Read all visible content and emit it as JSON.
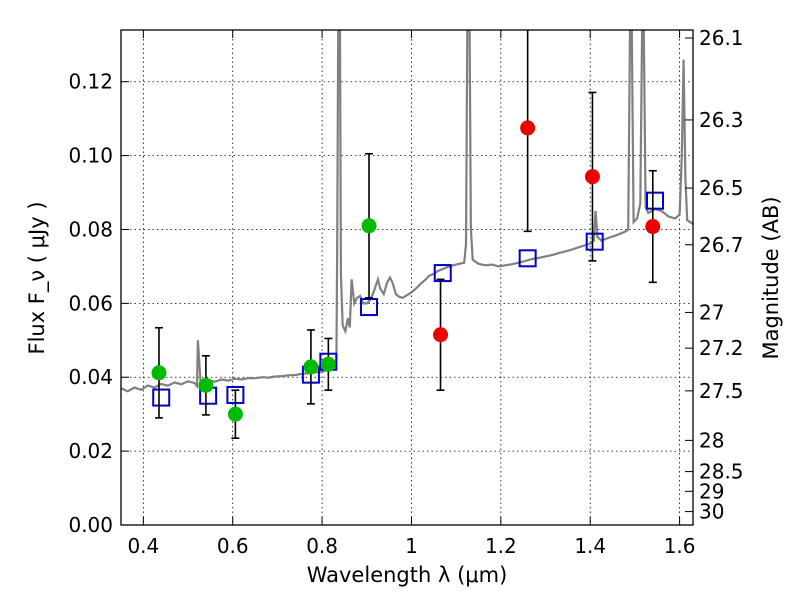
{
  "chart_data": {
    "type": "scatter",
    "xlabel": "Wavelength  λ (μm)",
    "ylabel": "Flux  F_ν  ( μJy )",
    "ylabel_right": "Magnitude (AB)",
    "xlim": [
      0.35,
      1.63
    ],
    "ylim": [
      0.0,
      0.134
    ],
    "grid": true,
    "x_ticks": [
      0.4,
      0.6,
      0.8,
      1.0,
      1.2,
      1.4,
      1.6
    ],
    "x_tick_labels": [
      "0.4",
      "0.6",
      "0.8",
      "1",
      "1.2",
      "1.4",
      "1.6"
    ],
    "y_ticks": [
      0.0,
      0.02,
      0.04,
      0.06,
      0.08,
      0.1,
      0.12
    ],
    "y_tick_labels": [
      "0.00",
      "0.02",
      "0.04",
      "0.06",
      "0.08",
      "0.10",
      "0.12"
    ],
    "right_ticks": [
      {
        "label": "26.1",
        "mag": 26.1
      },
      {
        "label": "26.3",
        "mag": 26.3
      },
      {
        "label": "26.5",
        "mag": 26.5
      },
      {
        "label": "26.7",
        "mag": 26.7
      },
      {
        "label": "27",
        "mag": 27.0
      },
      {
        "label": "27.2",
        "mag": 27.2
      },
      {
        "label": "27.5",
        "mag": 27.5
      },
      {
        "label": "28",
        "mag": 28.0
      },
      {
        "label": "28.5",
        "mag": 28.5
      },
      {
        "label": "29",
        "mag": 29.0
      },
      {
        "label": "30",
        "mag": 30.0
      }
    ],
    "series": [
      {
        "marker": "circle",
        "color": "#00bb00",
        "points": [
          {
            "x": 0.435,
            "y": 0.0412,
            "err": 0.0122
          },
          {
            "x": 0.54,
            "y": 0.0378,
            "err": 0.008
          },
          {
            "x": 0.606,
            "y": 0.03,
            "err": 0.0065
          },
          {
            "x": 0.775,
            "y": 0.0428,
            "err": 0.01
          },
          {
            "x": 0.814,
            "y": 0.0435,
            "err": 0.007
          },
          {
            "x": 0.905,
            "y": 0.081,
            "err": 0.0195
          }
        ]
      },
      {
        "marker": "circle",
        "color": "#ee0000",
        "points": [
          {
            "x": 1.065,
            "y": 0.0515,
            "err": 0.015
          },
          {
            "x": 1.26,
            "y": 0.1075,
            "err": 0.028
          },
          {
            "x": 1.405,
            "y": 0.0943,
            "err": 0.0228
          },
          {
            "x": 1.54,
            "y": 0.0808,
            "err": 0.0151
          }
        ]
      },
      {
        "marker": "square",
        "color": "#0000cc",
        "points": [
          {
            "x": 0.44,
            "y": 0.0345
          },
          {
            "x": 0.545,
            "y": 0.035
          },
          {
            "x": 0.606,
            "y": 0.0352
          },
          {
            "x": 0.775,
            "y": 0.0407
          },
          {
            "x": 0.814,
            "y": 0.0442
          },
          {
            "x": 0.905,
            "y": 0.059
          },
          {
            "x": 1.07,
            "y": 0.0682
          },
          {
            "x": 1.26,
            "y": 0.0722
          },
          {
            "x": 1.41,
            "y": 0.0767
          },
          {
            "x": 1.545,
            "y": 0.0878
          }
        ]
      },
      {
        "marker": "line",
        "color": "#808080",
        "points": [
          [
            0.35,
            0.037
          ],
          [
            0.365,
            0.0362
          ],
          [
            0.38,
            0.0372
          ],
          [
            0.395,
            0.0366
          ],
          [
            0.41,
            0.0378
          ],
          [
            0.425,
            0.0372
          ],
          [
            0.44,
            0.0382
          ],
          [
            0.455,
            0.0377
          ],
          [
            0.47,
            0.0386
          ],
          [
            0.485,
            0.0381
          ],
          [
            0.5,
            0.0389
          ],
          [
            0.515,
            0.0384
          ],
          [
            0.52,
            0.0376
          ],
          [
            0.522,
            0.05
          ],
          [
            0.524,
            0.0462
          ],
          [
            0.528,
            0.0388
          ],
          [
            0.545,
            0.0392
          ],
          [
            0.56,
            0.0388
          ],
          [
            0.575,
            0.0394
          ],
          [
            0.59,
            0.0391
          ],
          [
            0.605,
            0.0396
          ],
          [
            0.62,
            0.0394
          ],
          [
            0.635,
            0.0398
          ],
          [
            0.65,
            0.0397
          ],
          [
            0.665,
            0.04
          ],
          [
            0.68,
            0.0399
          ],
          [
            0.695,
            0.0402
          ],
          [
            0.71,
            0.0403
          ],
          [
            0.725,
            0.0405
          ],
          [
            0.74,
            0.0406
          ],
          [
            0.755,
            0.0409
          ],
          [
            0.77,
            0.0411
          ],
          [
            0.785,
            0.0413
          ],
          [
            0.8,
            0.0415
          ],
          [
            0.81,
            0.0419
          ],
          [
            0.818,
            0.0425
          ],
          [
            0.825,
            0.043
          ],
          [
            0.832,
            0.044
          ],
          [
            0.834,
            0.08
          ],
          [
            0.836,
            0.134
          ],
          [
            0.84,
            0.134
          ],
          [
            0.842,
            0.068
          ],
          [
            0.846,
            0.054
          ],
          [
            0.852,
            0.0525
          ],
          [
            0.858,
            0.056
          ],
          [
            0.862,
            0.0535
          ],
          [
            0.866,
            0.0665
          ],
          [
            0.872,
            0.06
          ],
          [
            0.878,
            0.0615
          ],
          [
            0.885,
            0.062
          ],
          [
            0.892,
            0.06
          ],
          [
            0.9,
            0.06
          ],
          [
            0.905,
            0.0605
          ],
          [
            0.912,
            0.062
          ],
          [
            0.918,
            0.064
          ],
          [
            0.925,
            0.0665
          ],
          [
            0.93,
            0.064
          ],
          [
            0.938,
            0.0625
          ],
          [
            0.945,
            0.0655
          ],
          [
            0.952,
            0.067
          ],
          [
            0.958,
            0.0655
          ],
          [
            0.965,
            0.0625
          ],
          [
            0.972,
            0.0618
          ],
          [
            0.98,
            0.0615
          ],
          [
            0.99,
            0.0622
          ],
          [
            1.0,
            0.063
          ],
          [
            1.01,
            0.064
          ],
          [
            1.02,
            0.0652
          ],
          [
            1.03,
            0.0663
          ],
          [
            1.04,
            0.0675
          ],
          [
            1.05,
            0.068
          ],
          [
            1.06,
            0.0688
          ],
          [
            1.07,
            0.0693
          ],
          [
            1.08,
            0.0698
          ],
          [
            1.09,
            0.0702
          ],
          [
            1.1,
            0.0705
          ],
          [
            1.11,
            0.0708
          ],
          [
            1.118,
            0.071
          ],
          [
            1.122,
            0.076
          ],
          [
            1.125,
            0.134
          ],
          [
            1.13,
            0.134
          ],
          [
            1.133,
            0.08
          ],
          [
            1.137,
            0.0718
          ],
          [
            1.15,
            0.0707
          ],
          [
            1.165,
            0.0703
          ],
          [
            1.18,
            0.0705
          ],
          [
            1.195,
            0.07
          ],
          [
            1.21,
            0.0703
          ],
          [
            1.225,
            0.0706
          ],
          [
            1.24,
            0.071
          ],
          [
            1.255,
            0.0715
          ],
          [
            1.27,
            0.072
          ],
          [
            1.285,
            0.0723
          ],
          [
            1.3,
            0.0727
          ],
          [
            1.315,
            0.0731
          ],
          [
            1.33,
            0.0736
          ],
          [
            1.345,
            0.0741
          ],
          [
            1.36,
            0.0746
          ],
          [
            1.375,
            0.0752
          ],
          [
            1.39,
            0.0758
          ],
          [
            1.4,
            0.0762
          ],
          [
            1.408,
            0.077
          ],
          [
            1.412,
            0.085
          ],
          [
            1.416,
            0.078
          ],
          [
            1.425,
            0.077
          ],
          [
            1.44,
            0.0777
          ],
          [
            1.455,
            0.0783
          ],
          [
            1.47,
            0.079
          ],
          [
            1.48,
            0.0795
          ],
          [
            1.485,
            0.08
          ],
          [
            1.489,
            0.134
          ],
          [
            1.493,
            0.134
          ],
          [
            1.497,
            0.082
          ],
          [
            1.505,
            0.083
          ],
          [
            1.512,
            0.087
          ],
          [
            1.516,
            0.134
          ],
          [
            1.52,
            0.134
          ],
          [
            1.524,
            0.086
          ],
          [
            1.53,
            0.0845
          ],
          [
            1.545,
            0.0855
          ],
          [
            1.56,
            0.085
          ],
          [
            1.575,
            0.0835
          ],
          [
            1.59,
            0.083
          ],
          [
            1.6,
            0.084
          ],
          [
            1.605,
            0.1
          ],
          [
            1.609,
            0.126
          ],
          [
            1.613,
            0.094
          ],
          [
            1.617,
            0.0825
          ],
          [
            1.63,
            0.0815
          ]
        ]
      }
    ]
  }
}
